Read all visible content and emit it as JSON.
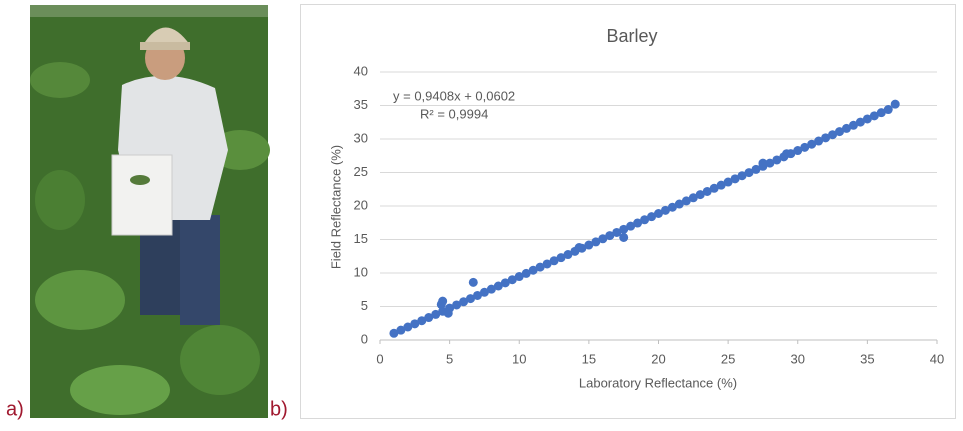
{
  "panel_labels": [
    "a)",
    "b)"
  ],
  "chart_data": {
    "type": "scatter",
    "title": "Barley",
    "x_label": "Laboratory Reflectance (%)",
    "y_label": "Field Reflectance (%)",
    "annotations": [
      "y = 0,9408x + 0,0602",
      "R² = 0,9994"
    ],
    "color": "#4472c4",
    "x": [
      1,
      1.5,
      2,
      2.5,
      3,
      3.5,
      4,
      4.5,
      5,
      5.5,
      6,
      6.5,
      7,
      7.5,
      8,
      8.5,
      9,
      9.5,
      10,
      10.5,
      11,
      11.5,
      12,
      12.5,
      13,
      13.5,
      14,
      14.5,
      15,
      15.5,
      16,
      16.5,
      17,
      17.5,
      18,
      18.5,
      19,
      19.5,
      20,
      20.5,
      21,
      21.5,
      22,
      22.5,
      23,
      23.5,
      24,
      24.5,
      25,
      25.5,
      26,
      26.5,
      27,
      27.5,
      28,
      28.5,
      29,
      29.5,
      30,
      30.5,
      31,
      31.5,
      32,
      32.5,
      33,
      33.5,
      34,
      34.5,
      35,
      35.5,
      36,
      36.5,
      37,
      6.7,
      4.5,
      4.4,
      4.9,
      29.2,
      17.5,
      14.3,
      27.5
    ],
    "values": [
      1.0,
      1.47,
      1.94,
      2.41,
      2.88,
      3.35,
      3.82,
      4.29,
      4.76,
      5.23,
      5.7,
      6.18,
      6.65,
      7.12,
      7.59,
      8.06,
      8.53,
      9.0,
      9.47,
      9.94,
      10.41,
      10.88,
      11.35,
      11.82,
      12.29,
      12.76,
      13.23,
      13.7,
      14.17,
      14.64,
      15.11,
      15.58,
      16.05,
      16.52,
      16.99,
      17.46,
      17.94,
      18.41,
      18.88,
      19.35,
      19.82,
      20.29,
      20.76,
      21.23,
      21.7,
      22.17,
      22.64,
      23.11,
      23.58,
      24.05,
      24.52,
      24.99,
      25.46,
      25.93,
      26.4,
      26.87,
      27.34,
      27.81,
      28.28,
      28.75,
      29.22,
      29.7,
      30.17,
      30.64,
      31.11,
      31.58,
      32.05,
      32.52,
      32.99,
      33.46,
      33.93,
      34.4,
      35.2,
      8.6,
      5.8,
      5.3,
      4.0,
      27.8,
      15.3,
      13.8,
      26.4
    ],
    "xlim": [
      0,
      40
    ],
    "xticks": [
      0,
      5,
      10,
      15,
      20,
      25,
      30,
      35,
      40
    ],
    "ylim": [
      0,
      40
    ],
    "yticks": [
      0,
      5,
      10,
      15,
      20,
      25,
      30,
      35,
      40
    ],
    "grid": true
  }
}
